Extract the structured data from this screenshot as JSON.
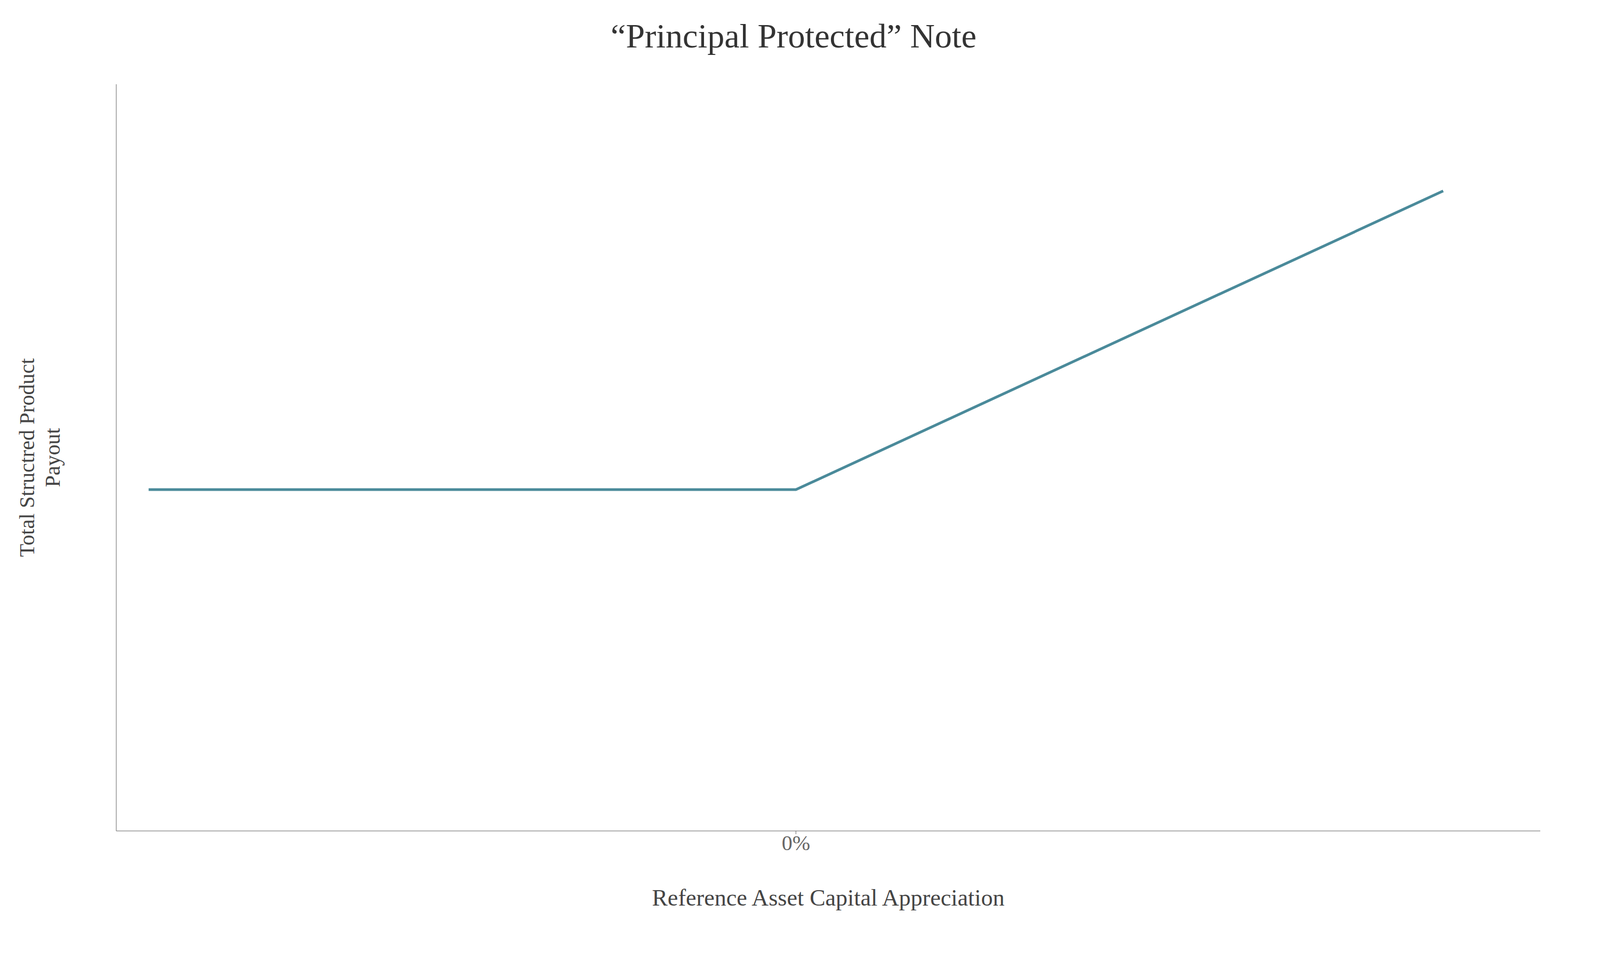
{
  "chart_data": {
    "type": "line",
    "title": "“Principal Protected” Note",
    "xlabel": "Reference Asset Capital Appreciation",
    "ylabel": "Total Structred Product\nPayout",
    "x": [
      -1.0,
      0.0,
      1.0
    ],
    "values": [
      0.3,
      0.3,
      1.0
    ],
    "color": "#4a8a9a",
    "xlim": [
      -1.05,
      1.15
    ],
    "ylim": [
      -0.5,
      1.25
    ],
    "xticks": [
      {
        "value": 0.0,
        "label": "0%"
      }
    ],
    "tick_labels": "x"
  }
}
